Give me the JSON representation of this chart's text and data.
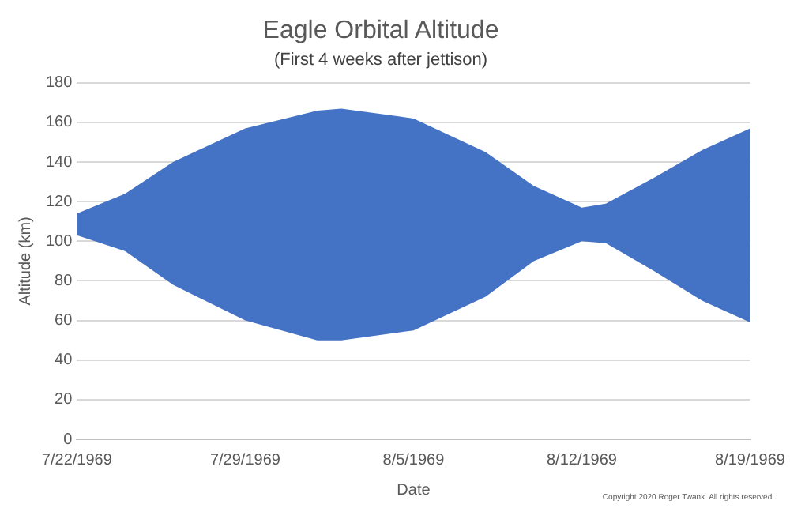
{
  "chart_data": {
    "type": "line",
    "title": "Eagle Orbital Altitude",
    "subtitle": "(First 4 weeks after jettison)",
    "xlabel": "Date",
    "ylabel": "Altitude (km)",
    "x": [
      "1969-07-22",
      "1969-07-24",
      "1969-07-26",
      "1969-07-29",
      "1969-08-01",
      "1969-08-02",
      "1969-08-05",
      "1969-08-08",
      "1969-08-10",
      "1969-08-12",
      "1969-08-13",
      "1969-08-15",
      "1969-08-17",
      "1969-08-19"
    ],
    "series": [
      {
        "color": "#4472c4",
        "values": [
          null,
          null,
          null,
          null,
          null,
          null,
          null,
          null,
          null,
          null,
          null,
          null,
          null,
          null
        ],
        "lower": [
          103,
          95,
          78,
          60,
          50,
          50,
          55,
          72,
          90,
          100,
          99,
          85,
          70,
          59
        ],
        "upper": [
          114,
          124,
          140,
          157,
          166,
          167,
          162,
          145,
          128,
          117,
          119,
          132,
          146,
          157
        ]
      }
    ],
    "xlim": [
      "1969-07-22",
      "1969-08-19"
    ],
    "xticks": [
      {
        "value": "1969-07-22",
        "label": "7/22/1969"
      },
      {
        "value": "1969-07-29",
        "label": "7/29/1969"
      },
      {
        "value": "1969-08-05",
        "label": "8/5/1969"
      },
      {
        "value": "1969-08-12",
        "label": "8/12/1969"
      },
      {
        "value": "1969-08-19",
        "label": "8/19/1969"
      }
    ],
    "ylim": [
      0,
      180
    ],
    "yticks": [
      0,
      20,
      40,
      60,
      80,
      100,
      120,
      140,
      160,
      180
    ],
    "grid": "y",
    "legend": false,
    "annotations": [
      "Copyright 2020 Roger Twank. All rights reserved."
    ]
  }
}
